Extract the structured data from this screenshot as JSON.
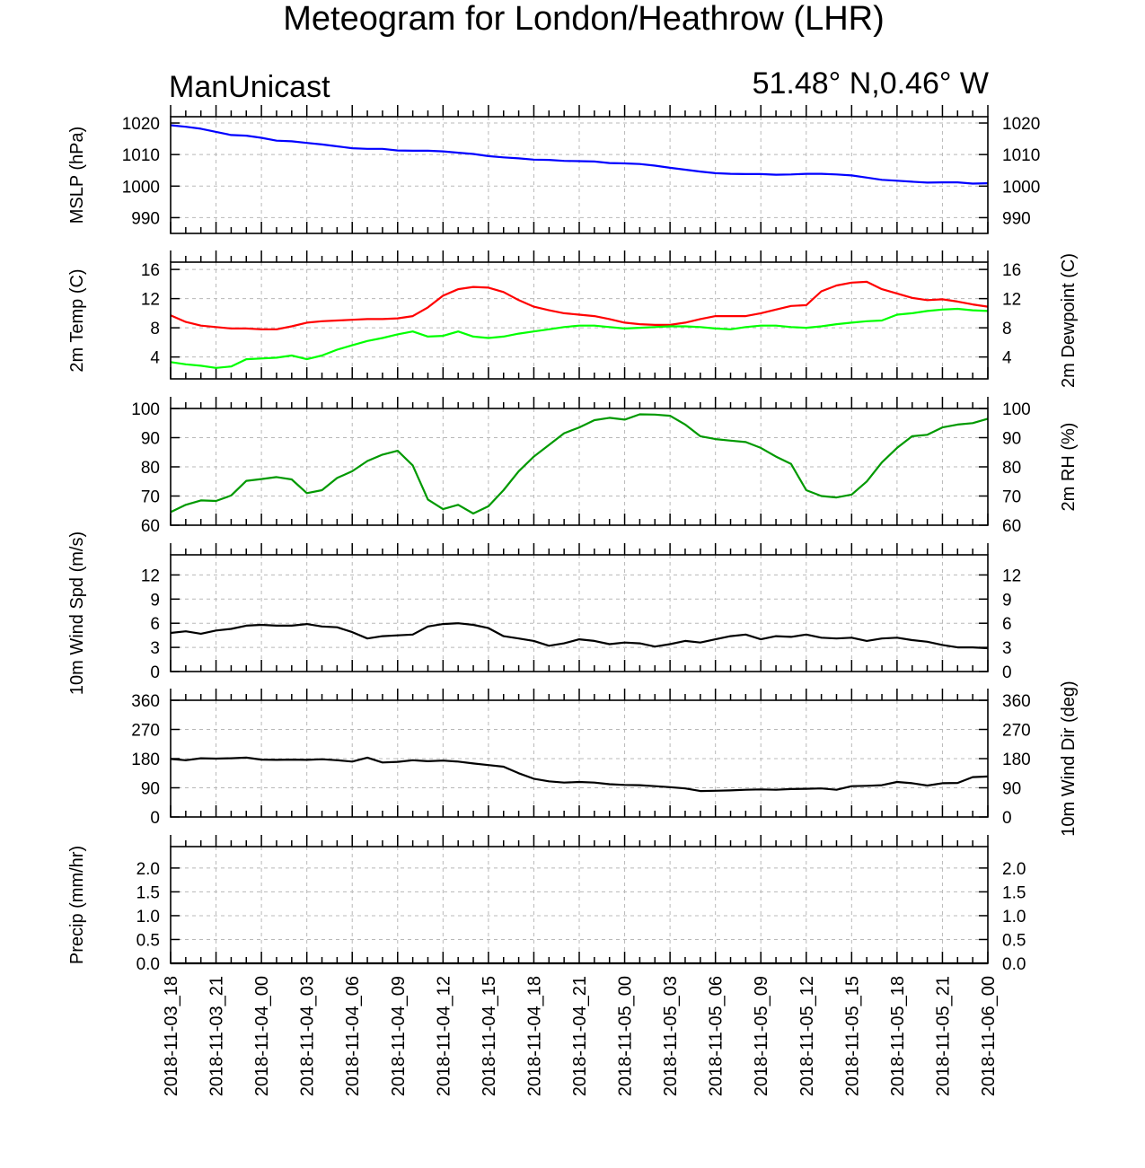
{
  "header": {
    "title": "Meteogram for London/Heathrow (LHR)",
    "model": "ManUnicast",
    "location": "51.48° N,0.46° W"
  },
  "chart_data": {
    "type": "line",
    "x_labels": [
      "2018-11-03_18",
      "2018-11-03_21",
      "2018-11-04_00",
      "2018-11-04_03",
      "2018-11-04_06",
      "2018-11-04_09",
      "2018-11-04_12",
      "2018-11-04_15",
      "2018-11-04_18",
      "2018-11-04_21",
      "2018-11-05_00",
      "2018-11-05_03",
      "2018-11-05_06",
      "2018-11-05_09",
      "2018-11-05_12",
      "2018-11-05_15",
      "2018-11-05_18",
      "2018-11-05_21",
      "2018-11-06_00"
    ],
    "x_hours": [
      0,
      1,
      2,
      3,
      4,
      5,
      6,
      7,
      8,
      9,
      10,
      11,
      12,
      13,
      14,
      15,
      16,
      17,
      18,
      19,
      20,
      21,
      22,
      23,
      24,
      25,
      26,
      27,
      28,
      29,
      30,
      31,
      32,
      33,
      34,
      35,
      36,
      37,
      38,
      39,
      40,
      41,
      42,
      43,
      44,
      45,
      46,
      47,
      48,
      49,
      50,
      51,
      52,
      53,
      54
    ],
    "grid": true,
    "panels": [
      {
        "id": "mslp",
        "ylabel_left": "MSLP (hPa)",
        "ylabel_right": "",
        "ylim": [
          985,
          1022
        ],
        "yticks": [
          990,
          1000,
          1010,
          1020
        ],
        "series": [
          {
            "name": "",
            "color": "#0000ff",
            "values": [
              1019.3,
              1018.8,
              1018.2,
              1017.2,
              1016.2,
              1016.0,
              1015.3,
              1014.4,
              1014.2,
              1013.7,
              1013.2,
              1012.6,
              1012.0,
              1011.8,
              1011.8,
              1011.3,
              1011.2,
              1011.2,
              1011.0,
              1010.6,
              1010.2,
              1009.5,
              1009.1,
              1008.8,
              1008.4,
              1008.3,
              1008.0,
              1007.9,
              1007.8,
              1007.3,
              1007.2,
              1007.0,
              1006.5,
              1005.8,
              1005.2,
              1004.6,
              1004.1,
              1003.9,
              1003.8,
              1003.8,
              1003.6,
              1003.7,
              1003.9,
              1003.9,
              1003.7,
              1003.4,
              1002.7,
              1002.0,
              1001.7,
              1001.4,
              1001.1,
              1001.2,
              1001.2,
              1000.8,
              1000.9
            ]
          }
        ]
      },
      {
        "id": "temp",
        "ylabel_left": "2m Temp (C)",
        "ylabel_right": "2m Dewpoint (C)",
        "ylim": [
          1,
          17
        ],
        "yticks": [
          4,
          8,
          12,
          16
        ],
        "series": [
          {
            "name": "2m Temp",
            "color": "#ff0000",
            "values": [
              9.7,
              8.8,
              8.3,
              8.1,
              7.9,
              7.9,
              7.8,
              7.8,
              8.2,
              8.7,
              8.9,
              9.0,
              9.1,
              9.2,
              9.2,
              9.3,
              9.6,
              10.8,
              12.4,
              13.3,
              13.6,
              13.5,
              12.9,
              11.8,
              10.9,
              10.4,
              10.0,
              9.8,
              9.6,
              9.2,
              8.7,
              8.5,
              8.4,
              8.4,
              8.7,
              9.2,
              9.6,
              9.6,
              9.6,
              10.0,
              10.5,
              11.0,
              11.1,
              13.0,
              13.8,
              14.2,
              14.3,
              13.3,
              12.7,
              12.1,
              11.8,
              11.9,
              11.6,
              11.2,
              10.9
            ]
          },
          {
            "name": "2m Dewpoint",
            "color": "#00ff00",
            "values": [
              3.3,
              3.0,
              2.8,
              2.5,
              2.7,
              3.7,
              3.8,
              3.9,
              4.2,
              3.7,
              4.2,
              5.0,
              5.6,
              6.2,
              6.6,
              7.1,
              7.5,
              6.8,
              6.9,
              7.5,
              6.8,
              6.6,
              6.8,
              7.2,
              7.5,
              7.8,
              8.1,
              8.3,
              8.3,
              8.1,
              7.9,
              8.0,
              8.1,
              8.2,
              8.2,
              8.1,
              7.9,
              7.8,
              8.1,
              8.3,
              8.3,
              8.1,
              8.0,
              8.2,
              8.5,
              8.7,
              8.9,
              9.0,
              9.8,
              10.0,
              10.3,
              10.5,
              10.6,
              10.4,
              10.3
            ]
          }
        ]
      },
      {
        "id": "rh",
        "ylabel_left": "",
        "ylabel_right": "2m RH (%)",
        "ylim": [
          60,
          100
        ],
        "yticks": [
          60,
          70,
          80,
          90,
          100
        ],
        "series": [
          {
            "name": "2m RH",
            "color": "#009900",
            "values": [
              64.5,
              67.0,
              68.5,
              68.3,
              70.2,
              75.2,
              75.8,
              76.5,
              75.7,
              71.0,
              72.0,
              76.2,
              78.5,
              82.0,
              84.2,
              85.5,
              80.5,
              68.8,
              65.5,
              67.0,
              64.0,
              66.5,
              72.0,
              78.5,
              83.5,
              87.5,
              91.5,
              93.5,
              96.0,
              96.8,
              96.2,
              98.0,
              97.9,
              97.5,
              94.5,
              90.5,
              89.5,
              89.0,
              88.5,
              86.5,
              83.5,
              81.0,
              72.0,
              70.0,
              69.5,
              70.5,
              75.0,
              81.5,
              86.5,
              90.5,
              91.0,
              93.5,
              94.5,
              95.0,
              96.5
            ]
          }
        ]
      },
      {
        "id": "wspd",
        "ylabel_left": "10m Wind Spd (m/s)",
        "ylabel_right": "",
        "ylim": [
          0,
          14.5
        ],
        "yticks": [
          0,
          3,
          6,
          9,
          12
        ],
        "series": [
          {
            "name": "10m Wind Spd",
            "color": "#000000",
            "values": [
              4.8,
              5.0,
              4.7,
              5.1,
              5.3,
              5.7,
              5.8,
              5.7,
              5.7,
              5.9,
              5.6,
              5.5,
              4.9,
              4.1,
              4.4,
              4.5,
              4.6,
              5.6,
              5.9,
              6.0,
              5.8,
              5.4,
              4.4,
              4.1,
              3.8,
              3.2,
              3.5,
              4.0,
              3.8,
              3.4,
              3.6,
              3.5,
              3.1,
              3.4,
              3.8,
              3.6,
              4.0,
              4.4,
              4.6,
              4.0,
              4.4,
              4.3,
              4.6,
              4.2,
              4.1,
              4.2,
              3.8,
              4.1,
              4.2,
              3.9,
              3.7,
              3.3,
              3.0,
              3.0,
              2.9
            ]
          }
        ]
      },
      {
        "id": "wdir",
        "ylabel_left": "",
        "ylabel_right": "10m Wind Dir (deg)",
        "ylim": [
          0,
          360
        ],
        "yticks": [
          0,
          90,
          180,
          270,
          360
        ],
        "series": [
          {
            "name": "10m Wind Dir",
            "color": "#000000",
            "values": [
              179,
              175,
              181,
              180,
              181,
              183,
              177,
              176,
              177,
              176,
              178,
              175,
              171,
              183,
              168,
              170,
              175,
              172,
              174,
              171,
              165,
              160,
              155,
              135,
              118,
              110,
              106,
              108,
              106,
              101,
              99,
              98,
              95,
              92,
              88,
              80,
              81,
              82,
              84,
              85,
              84,
              86,
              87,
              88,
              84,
              95,
              96,
              98,
              108,
              104,
              97,
              104,
              105,
              123,
              125
            ]
          }
        ]
      },
      {
        "id": "precip",
        "ylabel_left": "Precip (mm/hr)",
        "ylabel_right": "",
        "ylim": [
          0,
          2.45
        ],
        "yticks": [
          0.0,
          0.5,
          1.0,
          1.5,
          2.0
        ],
        "tick_format": 1,
        "series": [
          {
            "name": "Precip",
            "color": "#000000",
            "values": [
              0,
              0,
              0,
              0,
              0,
              0,
              0,
              0,
              0,
              0,
              0,
              0,
              0,
              0,
              0,
              0,
              0,
              0,
              0,
              0,
              0,
              0,
              0,
              0,
              0,
              0,
              0,
              0,
              0,
              0,
              0,
              0,
              0,
              0,
              0,
              0,
              0,
              0,
              0,
              0,
              0,
              0,
              0,
              0,
              0,
              0,
              0,
              0,
              0,
              0,
              0,
              0,
              0,
              0,
              0
            ]
          }
        ]
      }
    ]
  }
}
